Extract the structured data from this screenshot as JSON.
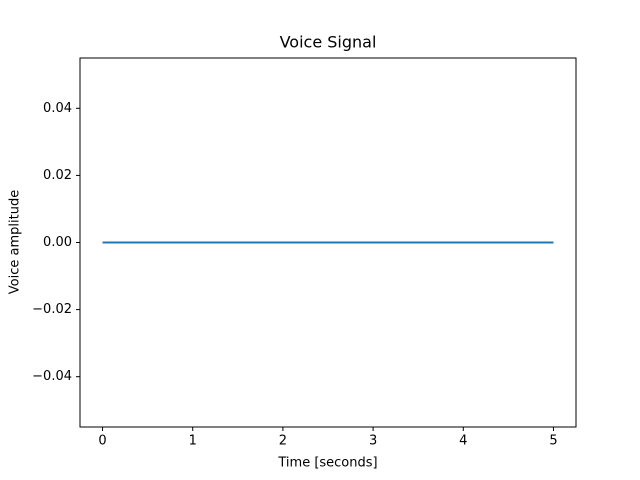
{
  "chart_data": {
    "type": "line",
    "title": "Voice Signal",
    "x_label": "Time [seconds]",
    "y_label": "Voice amplitude",
    "x": [
      0,
      5
    ],
    "values": [
      0,
      0
    ],
    "color": "#1f77b4",
    "xlim": [
      -0.25,
      5.25
    ],
    "xticks": [
      0,
      1,
      2,
      3,
      4,
      5
    ],
    "ylim": [
      -0.055,
      0.055
    ],
    "yticks": [
      {
        "value": -0.04,
        "label": "−0.04"
      },
      {
        "value": -0.02,
        "label": "−0.02"
      },
      {
        "value": 0,
        "label": "0.00"
      },
      0.02,
      0.04
    ],
    "grid": false
  }
}
